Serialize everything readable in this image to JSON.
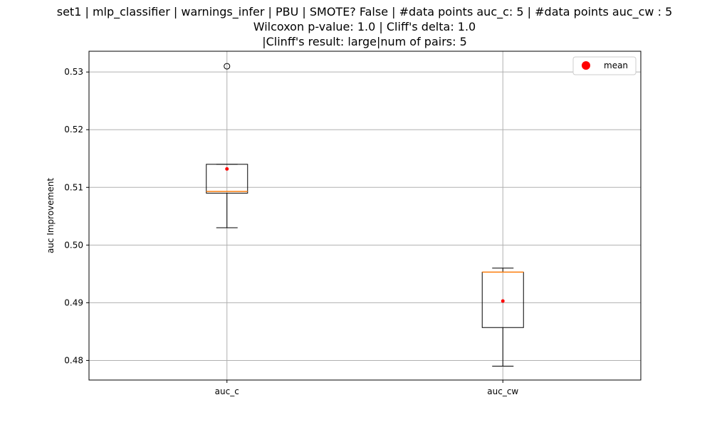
{
  "chart_data": {
    "type": "box",
    "title_lines": [
      "set1 | mlp_classifier | warnings_infer | PBU | SMOTE? False | #data points auc_c: 5 | #data points auc_cw : 5",
      "Wilcoxon p-value: 1.0 | Cliff's delta: 1.0",
      "|Clinff's result: large|num of pairs: 5"
    ],
    "xlabel": "",
    "ylabel": "auc Improvement",
    "categories": [
      "auc_c",
      "auc_cw"
    ],
    "ylim": [
      0.4766,
      0.5336
    ],
    "yticks": [
      0.48,
      0.49,
      0.5,
      0.51,
      0.52,
      0.53
    ],
    "ytick_labels": [
      "0.48",
      "0.49",
      "0.50",
      "0.51",
      "0.52",
      "0.53"
    ],
    "grid": true,
    "boxes": [
      {
        "category": "auc_c",
        "whisker_low": 0.503,
        "q1": 0.509,
        "median": 0.5093,
        "q3": 0.514,
        "whisker_high": 0.514,
        "mean": 0.5132,
        "outliers": [
          0.531
        ]
      },
      {
        "category": "auc_cw",
        "whisker_low": 0.479,
        "q1": 0.4857,
        "median": 0.4953,
        "q3": 0.4953,
        "whisker_high": 0.496,
        "mean": 0.4903,
        "outliers": []
      }
    ],
    "legend": {
      "position": "top-right",
      "entries": [
        {
          "label": "mean",
          "color": "#ff0000",
          "marker": "circle"
        }
      ]
    },
    "colors": {
      "median": "#ff7f0e",
      "mean": "#ff0000",
      "box": "#000000",
      "grid": "#b0b0b0"
    }
  }
}
